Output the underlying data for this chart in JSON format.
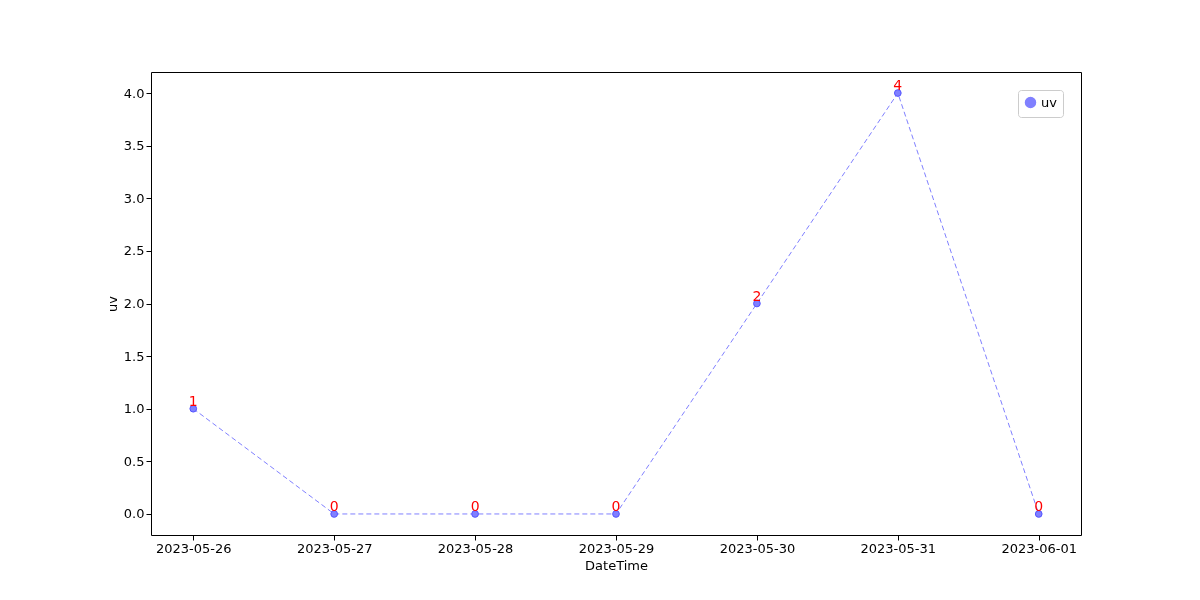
{
  "chart_data": {
    "type": "line",
    "xlabel": "DateTime",
    "ylabel": "uv",
    "x": [
      "2023-05-26",
      "2023-05-27",
      "2023-05-28",
      "2023-05-29",
      "2023-05-30",
      "2023-05-31",
      "2023-06-01"
    ],
    "series": [
      {
        "name": "uv",
        "color": "#8080ff",
        "values": [
          1,
          0,
          0,
          0,
          2,
          4,
          0
        ]
      }
    ],
    "xlim": [
      "2023-05-25T16:48",
      "2023-06-01T07:12"
    ],
    "xticks": [
      "2023-05-26",
      "2023-05-27",
      "2023-05-28",
      "2023-05-29",
      "2023-05-30",
      "2023-05-31",
      "2023-06-01"
    ],
    "ylim": [
      -0.2,
      4.2
    ],
    "yticks": [
      {
        "value": 0,
        "label": "0.0"
      },
      {
        "value": 0.5,
        "label": "0.5"
      },
      {
        "value": 1,
        "label": "1.0"
      },
      {
        "value": 1.5,
        "label": "1.5"
      },
      {
        "value": 2,
        "label": "2.0"
      },
      {
        "value": 2.5,
        "label": "2.5"
      },
      {
        "value": 3,
        "label": "3.0"
      },
      {
        "value": 3.5,
        "label": "3.5"
      },
      {
        "value": 4,
        "label": "4.0"
      }
    ],
    "grid": false,
    "legend": "top right",
    "marker": "circle",
    "line_style": "dashed",
    "data_labels": true
  }
}
